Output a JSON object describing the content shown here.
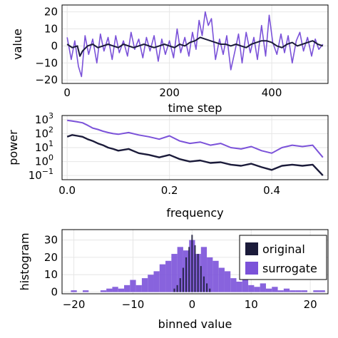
{
  "colors": {
    "original": "#1b1b3a",
    "surrogate": "#7b52d9",
    "grid": "#e6e6e6"
  },
  "chart_data": [
    {
      "type": "line",
      "xlabel": "time step",
      "ylabel": "value",
      "xlim": [
        -10,
        510
      ],
      "ylim": [
        -22,
        24
      ],
      "xticks": [
        0,
        200,
        400
      ],
      "yticks": [
        -20,
        -10,
        0,
        10,
        20
      ],
      "grid": true,
      "series": [
        {
          "name": "original",
          "x": [
            0,
            10,
            20,
            25,
            30,
            40,
            50,
            60,
            70,
            80,
            90,
            100,
            110,
            120,
            130,
            140,
            150,
            160,
            170,
            180,
            190,
            200,
            210,
            220,
            230,
            240,
            250,
            260,
            270,
            280,
            290,
            300,
            310,
            320,
            330,
            340,
            350,
            360,
            370,
            380,
            390,
            400,
            410,
            420,
            430,
            440,
            450,
            460,
            470,
            480,
            490,
            500
          ],
          "y": [
            1,
            -1,
            0,
            -6,
            -3,
            0,
            1,
            -1,
            0,
            1,
            0,
            -1,
            1,
            0,
            -1,
            0,
            1,
            0,
            -1,
            0,
            1,
            0,
            -1,
            1,
            0,
            2,
            3,
            5,
            4,
            3,
            2,
            1,
            1,
            0,
            1,
            0,
            -1,
            1,
            2,
            3,
            3,
            2,
            0,
            -1,
            1,
            2,
            0,
            1,
            2,
            3,
            1,
            0
          ]
        },
        {
          "name": "surrogate",
          "x": [
            0,
            8,
            15,
            22,
            28,
            35,
            42,
            50,
            58,
            65,
            72,
            80,
            88,
            95,
            102,
            110,
            118,
            125,
            132,
            140,
            148,
            155,
            162,
            170,
            178,
            185,
            192,
            200,
            208,
            215,
            222,
            230,
            238,
            245,
            252,
            258,
            264,
            270,
            276,
            282,
            290,
            298,
            305,
            312,
            320,
            328,
            335,
            342,
            350,
            358,
            365,
            372,
            380,
            388,
            395,
            402,
            410,
            418,
            425,
            432,
            440,
            448,
            455,
            462,
            470,
            478,
            485,
            492,
            500
          ],
          "y": [
            5,
            -8,
            3,
            -12,
            -18,
            6,
            -5,
            4,
            -10,
            7,
            -3,
            5,
            -8,
            6,
            -4,
            3,
            -6,
            8,
            -2,
            4,
            -7,
            5,
            -3,
            6,
            -9,
            4,
            -5,
            3,
            -7,
            10,
            -4,
            5,
            -6,
            8,
            -2,
            15,
            6,
            20,
            12,
            16,
            -8,
            4,
            -5,
            6,
            -14,
            -3,
            7,
            -10,
            8,
            -4,
            5,
            -8,
            12,
            -6,
            18,
            2,
            -5,
            7,
            -4,
            6,
            -10,
            3,
            8,
            -3,
            5,
            -6,
            4,
            -2,
            1
          ]
        }
      ]
    },
    {
      "type": "line",
      "xlabel": "frequency",
      "ylabel": "power",
      "log_y": true,
      "xlim": [
        -0.01,
        0.51
      ],
      "ylim_log10": [
        -1.3,
        3.3
      ],
      "xticks": [
        "0.0",
        "0.2",
        "0.4"
      ],
      "ytick_exponents": [
        -1,
        0,
        1,
        2,
        3
      ],
      "grid": true,
      "series": [
        {
          "name": "original",
          "x": [
            0.0,
            0.01,
            0.02,
            0.03,
            0.04,
            0.05,
            0.06,
            0.07,
            0.08,
            0.09,
            0.1,
            0.12,
            0.14,
            0.16,
            0.18,
            0.2,
            0.22,
            0.24,
            0.26,
            0.28,
            0.3,
            0.32,
            0.34,
            0.36,
            0.38,
            0.4,
            0.42,
            0.44,
            0.46,
            0.48,
            0.5
          ],
          "y": [
            60,
            80,
            70,
            60,
            40,
            30,
            20,
            15,
            10,
            8,
            6,
            8,
            4,
            3,
            2,
            3,
            1.5,
            1.0,
            1.2,
            0.8,
            0.9,
            0.6,
            0.5,
            0.7,
            0.4,
            0.25,
            0.5,
            0.6,
            0.5,
            0.6,
            0.1
          ]
        },
        {
          "name": "surrogate",
          "x": [
            0.0,
            0.01,
            0.02,
            0.03,
            0.04,
            0.05,
            0.06,
            0.07,
            0.08,
            0.09,
            0.1,
            0.12,
            0.14,
            0.16,
            0.18,
            0.2,
            0.22,
            0.24,
            0.26,
            0.28,
            0.3,
            0.32,
            0.34,
            0.36,
            0.38,
            0.4,
            0.42,
            0.44,
            0.46,
            0.48,
            0.5
          ],
          "y": [
            900,
            800,
            700,
            600,
            400,
            250,
            200,
            150,
            120,
            100,
            90,
            120,
            80,
            60,
            40,
            70,
            30,
            20,
            25,
            15,
            20,
            10,
            8,
            12,
            6,
            4,
            10,
            15,
            12,
            15,
            2
          ]
        }
      ]
    },
    {
      "type": "histogram",
      "xlabel": "binned value",
      "ylabel": "histogram",
      "xlim": [
        -22,
        23
      ],
      "ylim": [
        -1,
        36
      ],
      "xticks": [
        -20,
        -10,
        0,
        10,
        20
      ],
      "yticks": [
        0,
        10,
        20,
        30
      ],
      "grid": true,
      "legend_position": "top-right",
      "series": [
        {
          "name": "original",
          "bin_width": 0.25,
          "centers": [
            -3.0,
            -2.5,
            -2.0,
            -1.5,
            -1.0,
            -0.5,
            0.0,
            0.5,
            1.0,
            1.5,
            2.0,
            2.5,
            3.0
          ],
          "counts": [
            2,
            4,
            8,
            14,
            20,
            26,
            33,
            27,
            22,
            15,
            9,
            5,
            2
          ]
        },
        {
          "name": "surrogate",
          "bin_width": 1,
          "centers": [
            -20,
            -18,
            -15,
            -14,
            -13,
            -12,
            -11,
            -10,
            -9,
            -8,
            -7,
            -6,
            -5,
            -4,
            -3,
            -2,
            -1,
            0,
            1,
            2,
            3,
            4,
            5,
            6,
            7,
            8,
            9,
            10,
            11,
            12,
            13,
            14,
            15,
            16,
            17,
            18,
            19,
            20,
            21,
            22
          ],
          "counts": [
            1,
            1,
            1,
            2,
            3,
            2,
            4,
            7,
            4,
            8,
            10,
            12,
            16,
            18,
            22,
            26,
            24,
            30,
            22,
            26,
            20,
            18,
            14,
            12,
            8,
            6,
            10,
            4,
            3,
            5,
            2,
            3,
            1,
            2,
            1,
            1,
            1,
            0,
            1,
            1
          ]
        }
      ]
    }
  ]
}
